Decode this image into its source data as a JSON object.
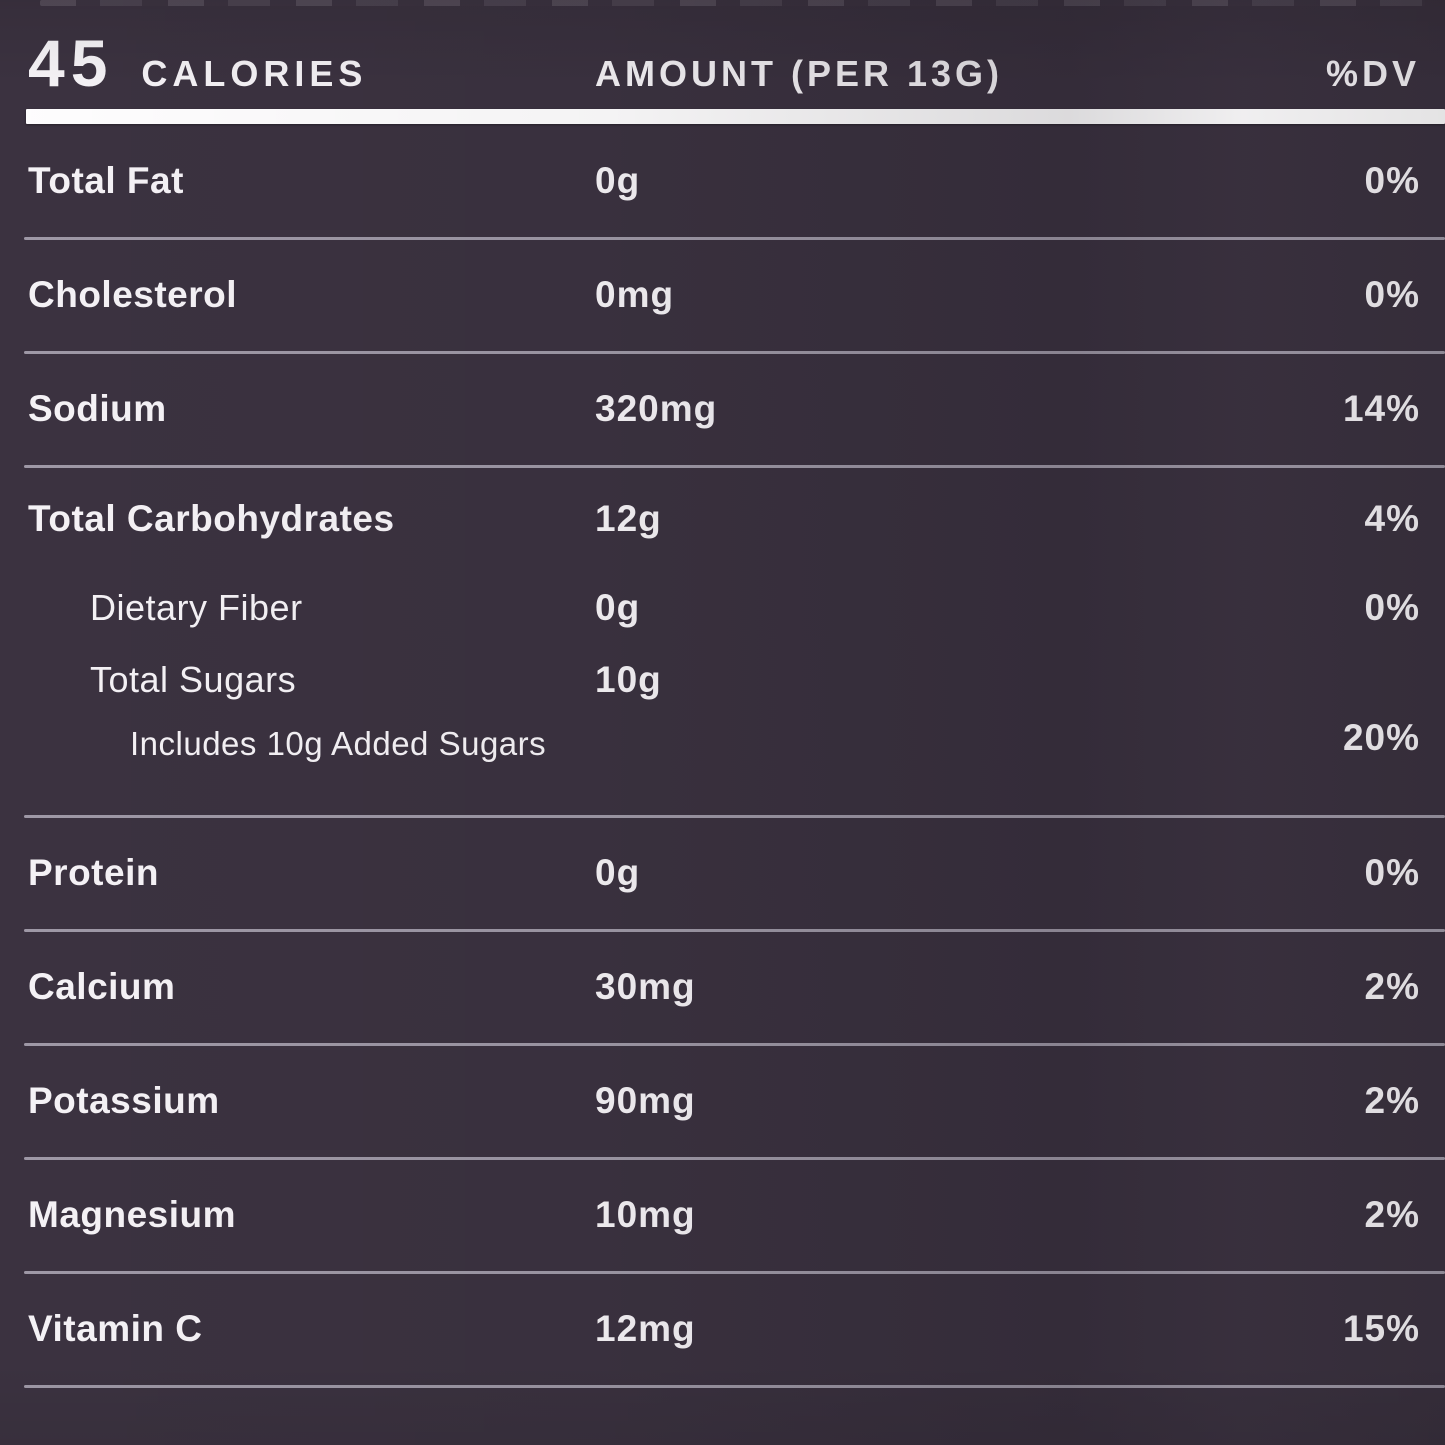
{
  "panel": {
    "header": {
      "calories_value": "45",
      "calories_label": "CALORIES",
      "amount_label": "AMOUNT (PER 13G)",
      "dv_label": "%DV"
    },
    "rows": [
      {
        "label": "Total Fat",
        "amount": "0g",
        "dv": "0%",
        "indent": 0,
        "divider_after": true
      },
      {
        "label": "Cholesterol",
        "amount": "0mg",
        "dv": "0%",
        "indent": 0,
        "divider_after": true
      },
      {
        "label": "Sodium",
        "amount": "320mg",
        "dv": "14%",
        "indent": 0,
        "divider_after": true
      },
      {
        "label": "Total Carbohydrates",
        "amount": "12g",
        "dv": "4%",
        "indent": 0,
        "divider_after": false
      },
      {
        "label": "Dietary Fiber",
        "amount": "0g",
        "dv": "0%",
        "indent": 1,
        "divider_after": false
      },
      {
        "label": "Total Sugars",
        "amount": "10g",
        "dv": "",
        "indent": 1,
        "divider_after": false
      },
      {
        "label": "Includes 10g Added Sugars",
        "amount": "",
        "dv": "20%",
        "indent": 2,
        "divider_after": true
      },
      {
        "label": "Protein",
        "amount": "0g",
        "dv": "0%",
        "indent": 0,
        "divider_after": true
      },
      {
        "label": "Calcium",
        "amount": "30mg",
        "dv": "2%",
        "indent": 0,
        "divider_after": true
      },
      {
        "label": "Potassium",
        "amount": "90mg",
        "dv": "2%",
        "indent": 0,
        "divider_after": true
      },
      {
        "label": "Magnesium",
        "amount": "10mg",
        "dv": "2%",
        "indent": 0,
        "divider_after": true
      },
      {
        "label": "Vitamin C",
        "amount": "12mg",
        "dv": "15%",
        "indent": 0,
        "divider_after": true
      }
    ],
    "colors": {
      "background": "#3b3240",
      "text": "#f5f2f6",
      "divider": "#aaa3b1",
      "header_rule": "#fefdfe"
    }
  }
}
